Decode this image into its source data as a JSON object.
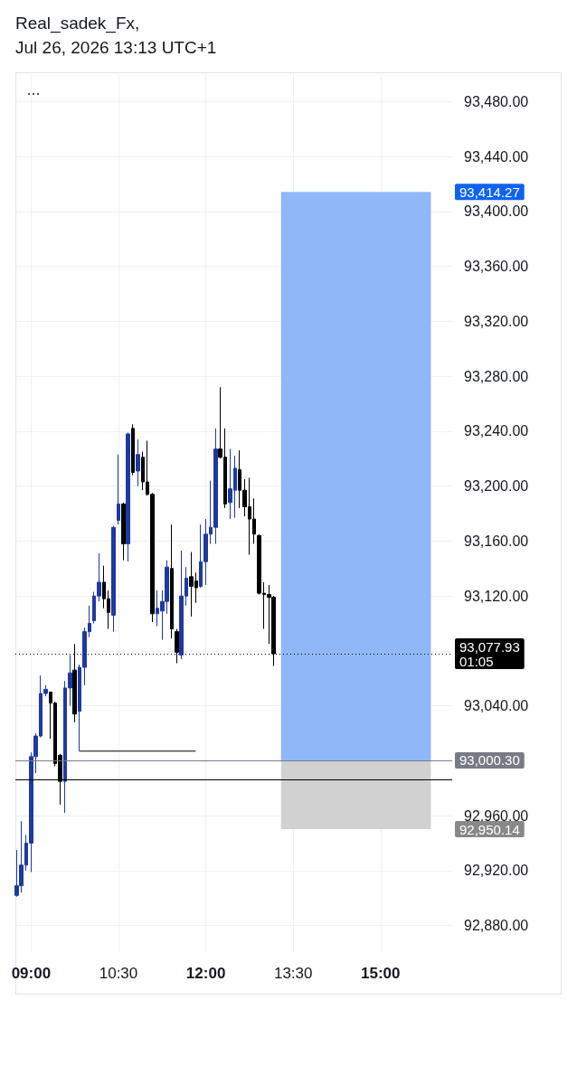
{
  "chart_data": {
    "type": "candlestick",
    "title": "Real_sadek_Fx,",
    "subtitle": "Jul 26, 2026 13:13 UTC+1",
    "x": [
      8.75,
      8.833,
      8.917,
      9,
      9.083,
      9.167,
      9.25,
      9.333,
      9.417,
      9.5,
      9.583,
      9.667,
      9.75,
      9.833,
      9.917,
      10,
      10.083,
      10.167,
      10.25,
      10.333,
      10.417,
      10.5,
      10.583,
      10.667,
      10.75,
      10.833,
      10.917,
      11,
      11.083,
      11.167,
      11.25,
      11.333,
      11.417,
      11.5,
      11.583,
      11.667,
      11.75,
      11.833,
      11.917,
      12,
      12.083,
      12.167,
      12.25,
      12.333,
      12.417,
      12.5,
      12.583,
      12.667,
      12.75,
      12.833,
      12.917,
      13,
      13.083,
      13.167
    ],
    "ohlc": [
      [
        92902,
        92935,
        92901,
        92909
      ],
      [
        92909,
        92956,
        92904,
        92924
      ],
      [
        92924,
        92946,
        92920,
        92940
      ],
      [
        92940,
        93006,
        92919,
        93003
      ],
      [
        93003,
        93020,
        92991,
        93018
      ],
      [
        93018,
        93062,
        93017,
        93049
      ],
      [
        93049,
        93055,
        93047,
        93052
      ],
      [
        93050,
        93050,
        93016,
        93042
      ],
      [
        93042,
        93043,
        92996,
        92998
      ],
      [
        93004,
        93005,
        92968,
        92985
      ],
      [
        92985,
        93058,
        92962,
        93053
      ],
      [
        93053,
        93077,
        93040,
        93064
      ],
      [
        93066,
        93085,
        93028,
        93034
      ],
      [
        93036,
        93070,
        93007,
        93068
      ],
      [
        93068,
        93097,
        93055,
        93094
      ],
      [
        93094,
        93113,
        93090,
        93100
      ],
      [
        93102,
        93123,
        93100,
        93120
      ],
      [
        93120,
        93151,
        93116,
        93130
      ],
      [
        93130,
        93142,
        93111,
        93118
      ],
      [
        93118,
        93124,
        93096,
        93108
      ],
      [
        93106,
        93171,
        93094,
        93170
      ],
      [
        93175,
        93223,
        93172,
        93187
      ],
      [
        93187,
        93188,
        93146,
        93158
      ],
      [
        93158,
        93239,
        93145,
        93238
      ],
      [
        93242,
        93245,
        93208,
        93210
      ],
      [
        93211,
        93234,
        93200,
        93223
      ],
      [
        93221,
        93225,
        93197,
        93203
      ],
      [
        93203,
        93233,
        93193,
        93194
      ],
      [
        93194,
        93195,
        93101,
        93107
      ],
      [
        93107,
        93124,
        93098,
        93111
      ],
      [
        93109,
        93124,
        93088,
        93116
      ],
      [
        93116,
        93146,
        93107,
        93141
      ],
      [
        93140,
        93172,
        93089,
        93096
      ],
      [
        93094,
        93096,
        93071,
        93079
      ],
      [
        93077,
        93153,
        93074,
        93120
      ],
      [
        93120,
        93141,
        93113,
        93133
      ],
      [
        93134,
        93152,
        93105,
        93127
      ],
      [
        93131,
        93137,
        93115,
        93126
      ],
      [
        93127,
        93172,
        93126,
        93145
      ],
      [
        93145,
        93176,
        93128,
        93165
      ],
      [
        93165,
        93204,
        93158,
        93170
      ],
      [
        93170,
        93242,
        93158,
        93227
      ],
      [
        93227,
        93272,
        93220,
        93221
      ],
      [
        93221,
        93242,
        93184,
        93187
      ],
      [
        93188,
        93227,
        93176,
        93198
      ],
      [
        93197,
        93222,
        93177,
        93213
      ],
      [
        93212,
        93226,
        93184,
        93197
      ],
      [
        93197,
        93205,
        93178,
        93185
      ],
      [
        93185,
        93206,
        93150,
        93176
      ],
      [
        93176,
        93191,
        93158,
        93165
      ],
      [
        93164,
        93165,
        93121,
        93122
      ],
      [
        93122,
        93130,
        93096,
        93121
      ],
      [
        93121,
        93128,
        93085,
        93119
      ],
      [
        93119,
        93120,
        93069,
        93077.93
      ]
    ],
    "colors": [
      "#1e3a9f",
      "#1e3a9f",
      "#1e3a9f",
      "#1e3a9f",
      "#1e3a9f",
      "#1e3a9f",
      "#1e3a9f",
      "#000000",
      "#000000",
      "#000000",
      "#1e3a9f",
      "#1e3a9f",
      "#000000",
      "#1e3a9f",
      "#1e3a9f",
      "#1e3a9f",
      "#1e3a9f",
      "#1e3a9f",
      "#000000",
      "#000000",
      "#1e3a9f",
      "#1e3a9f",
      "#000000",
      "#1e3a9f",
      "#000000",
      "#1e3a9f",
      "#000000",
      "#000000",
      "#000000",
      "#1e3a9f",
      "#1e3a9f",
      "#1e3a9f",
      "#000000",
      "#000000",
      "#1e3a9f",
      "#1e3a9f",
      "#000000",
      "#000000",
      "#1e3a9f",
      "#1e3a9f",
      "#1e3a9f",
      "#1e3a9f",
      "#000000",
      "#000000",
      "#1e3a9f",
      "#1e3a9f",
      "#000000",
      "#000000",
      "#000000",
      "#000000",
      "#000000",
      "#000000",
      "#000000",
      "#000000"
    ],
    "series": [
      {
        "type": "line",
        "x": [
          9.833,
          11.82
        ],
        "values": [
          93007,
          93007
        ],
        "color": "#000000"
      }
    ],
    "xlim": [
      8.73,
      16.23
    ],
    "xticks": [
      {
        "value": 9,
        "label": "09:00"
      },
      {
        "value": 10.5,
        "label": "10:30"
      },
      {
        "value": 12,
        "label": "12:00"
      },
      {
        "value": 13.5,
        "label": "13:30"
      },
      {
        "value": 15,
        "label": "15:00"
      }
    ],
    "ylim": [
      92860,
      93500
    ],
    "yticks": [
      {
        "value": 92880,
        "label": "92,880.00"
      },
      {
        "value": 92920,
        "label": "92,920.00"
      },
      {
        "value": 92960,
        "label": "92,960.00"
      },
      {
        "value": 93000,
        "label": null
      },
      {
        "value": 93040,
        "label": "93,040.00"
      },
      {
        "value": 93080,
        "label": null
      },
      {
        "value": 93120,
        "label": "93,120.00"
      },
      {
        "value": 93160,
        "label": "93,160.00"
      },
      {
        "value": 93200,
        "label": "93,200.00"
      },
      {
        "value": 93240,
        "label": "93,240.00"
      },
      {
        "value": 93280,
        "label": "93,280.00"
      },
      {
        "value": 93320,
        "label": "93,320.00"
      },
      {
        "value": 93360,
        "label": "93,360.00"
      },
      {
        "value": 93400,
        "label": "93,400.00"
      },
      {
        "value": 93440,
        "label": "93,440.00"
      },
      {
        "value": 93480,
        "label": "93,480.00"
      }
    ],
    "grid": true,
    "ref_lines": [
      {
        "axis": "y",
        "value": 93077.93,
        "label": "93,077.93\n01:05",
        "color": "#000000",
        "line_style": "dotted"
      },
      {
        "axis": "y",
        "value": 93000.3,
        "label": "93,000.30",
        "color": "#787b86"
      },
      {
        "axis": "y",
        "value": 92986,
        "color": "#000000"
      }
    ],
    "bands": [
      {
        "axis": "y",
        "from": 93000.3,
        "to": 93414.27,
        "label": "93,414.27",
        "color": "#90b7f8"
      },
      {
        "axis": "y",
        "from": 93000.3,
        "to": 92950.14,
        "label": "92,950.14",
        "color": "#d1d1d1"
      }
    ]
  }
}
